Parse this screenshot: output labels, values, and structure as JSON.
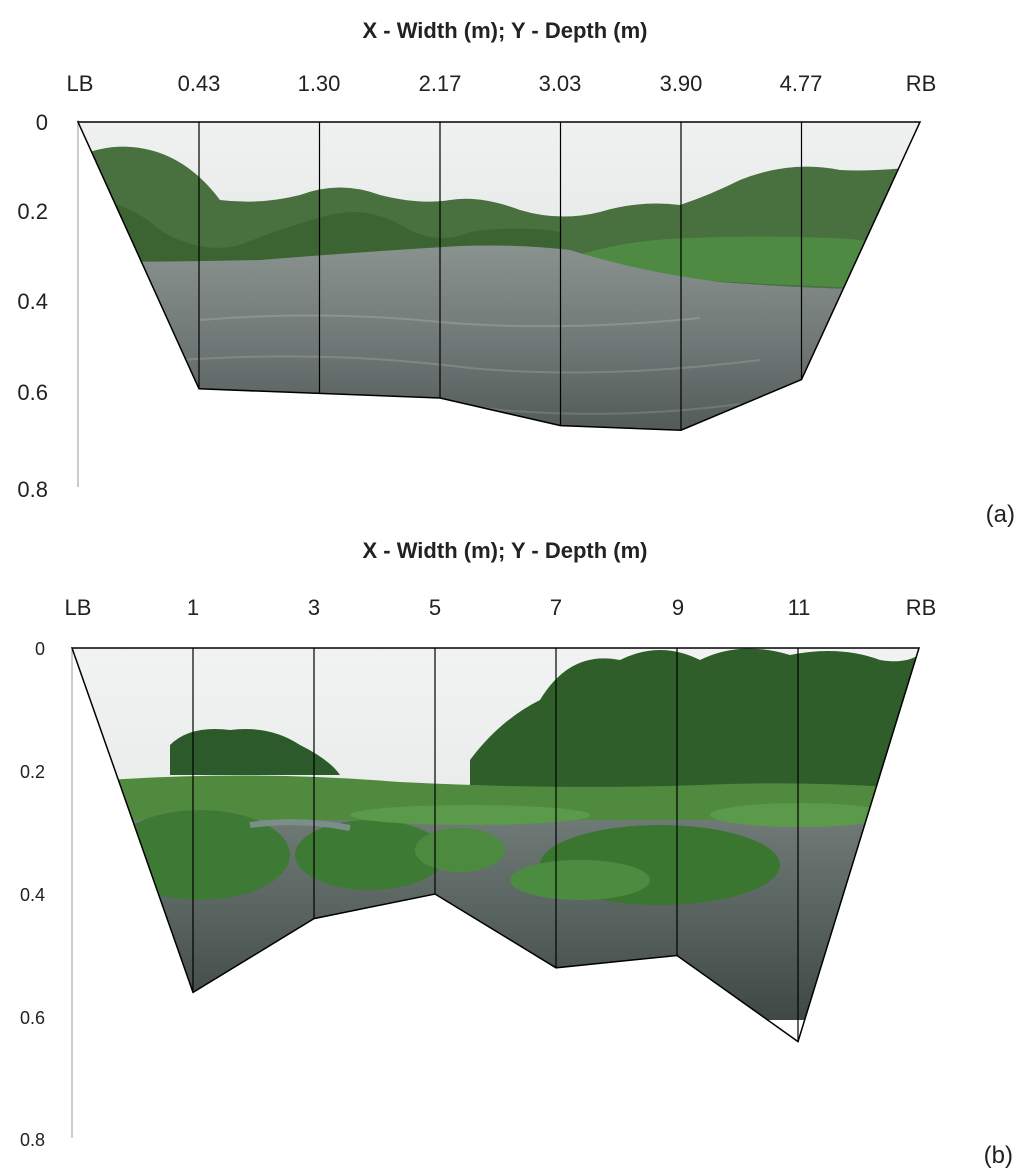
{
  "chart_data": [
    {
      "type": "area",
      "panel_label": "(a)",
      "title": "X - Width (m); Y - Depth (m)",
      "x_tick_labels": [
        "LB",
        "0.43",
        "1.30",
        "2.17",
        "3.03",
        "3.90",
        "4.77",
        "RB"
      ],
      "y_tick_labels": [
        "0",
        "0.2",
        "0.4",
        "0.6",
        "0.8"
      ],
      "ylim": [
        0,
        0.8
      ],
      "y_inverted": true,
      "depths": [
        0,
        0.58,
        0.59,
        0.6,
        0.66,
        0.67,
        0.56,
        0
      ],
      "fill": "photographic river cross-section",
      "colors": {
        "sky": "#e4e8e6",
        "vegetation": "#3f6b34",
        "water": "#6f7876",
        "outline": "#000000"
      }
    },
    {
      "type": "area",
      "panel_label": "(b)",
      "title": "X - Width (m); Y - Depth (m)",
      "x_tick_labels": [
        "LB",
        "1",
        "3",
        "5",
        "7",
        "9",
        "11",
        "RB"
      ],
      "y_tick_labels": [
        "0",
        "0.2",
        "0.4",
        "0.6",
        "0.8"
      ],
      "ylim": [
        0,
        0.8
      ],
      "y_inverted": true,
      "depths": [
        0,
        0.56,
        0.44,
        0.4,
        0.52,
        0.5,
        0.64,
        0
      ],
      "fill": "photographic river cross-section",
      "colors": {
        "sky": "#e6e8e8",
        "vegetation": "#3e7a35",
        "water": "#5c6662",
        "outline": "#000000"
      }
    }
  ]
}
